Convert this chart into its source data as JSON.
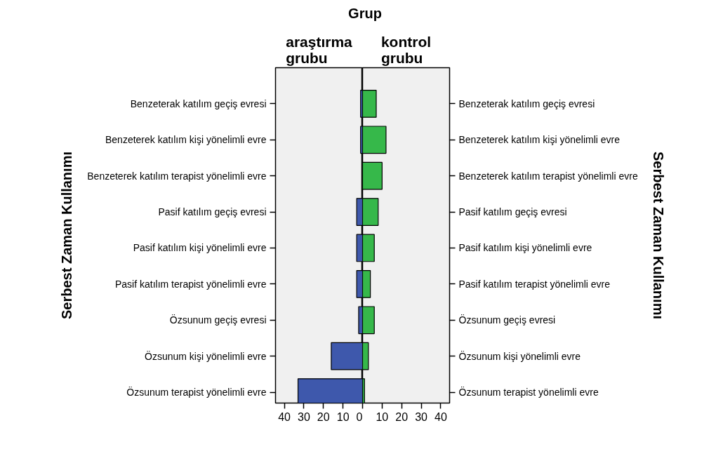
{
  "chart_data": [
    {
      "type": "bar",
      "orientation": "horizontal",
      "title": "araştırma\ngrubu",
      "ylabel": "Serbest Zaman Kullanımı",
      "annotations": [
        "Grup"
      ],
      "categories": [
        "Benzeterak katılım geçiş evresi",
        "Benzeterek katılım kişi yönelimli evre",
        "Benzeterek katılım terapist yönelimli evre",
        "Pasif katılım geçiş evresi",
        "Pasif katılım kişi yönelimli evre",
        "Pasif katılım terapist yönelimli evre",
        "Özsunum geçiş evresi",
        "Özsunum kişi yönelimli evre",
        "Özsunum terapist yönelimli evre"
      ],
      "values": [
        1,
        1,
        null,
        3,
        3,
        3,
        2,
        16,
        33
      ],
      "color": "#3e58ac",
      "xlim": [
        44.5,
        0
      ],
      "xticks": [
        40,
        30,
        20,
        10,
        0
      ],
      "grid": false
    },
    {
      "type": "bar",
      "orientation": "horizontal",
      "title": "kontrol\ngrubu",
      "ylabel": "Serbest Zaman Kullanımı",
      "categories": [
        "Benzeterak katılım geçiş evresi",
        "Benzeterek katılım kişi yönelimli evre",
        "Benzeterek katılım terapist yönelimli evre",
        "Pasif katılım geçiş evresi",
        "Pasif katılım kişi yönelimli evre",
        "Pasif katılım terapist yönelimli evre",
        "Özsunum geçiş evresi",
        "Özsunum kişi yönelimli evre",
        "Özsunum terapist yönelimli evre"
      ],
      "values": [
        7,
        12,
        10,
        8,
        6,
        4,
        6,
        3,
        1
      ],
      "color": "#36b84a",
      "xlim": [
        0,
        44.5
      ],
      "xticks": [
        {
          "value": 0,
          "label": null
        },
        10,
        20,
        30,
        40
      ],
      "grid": false
    }
  ]
}
